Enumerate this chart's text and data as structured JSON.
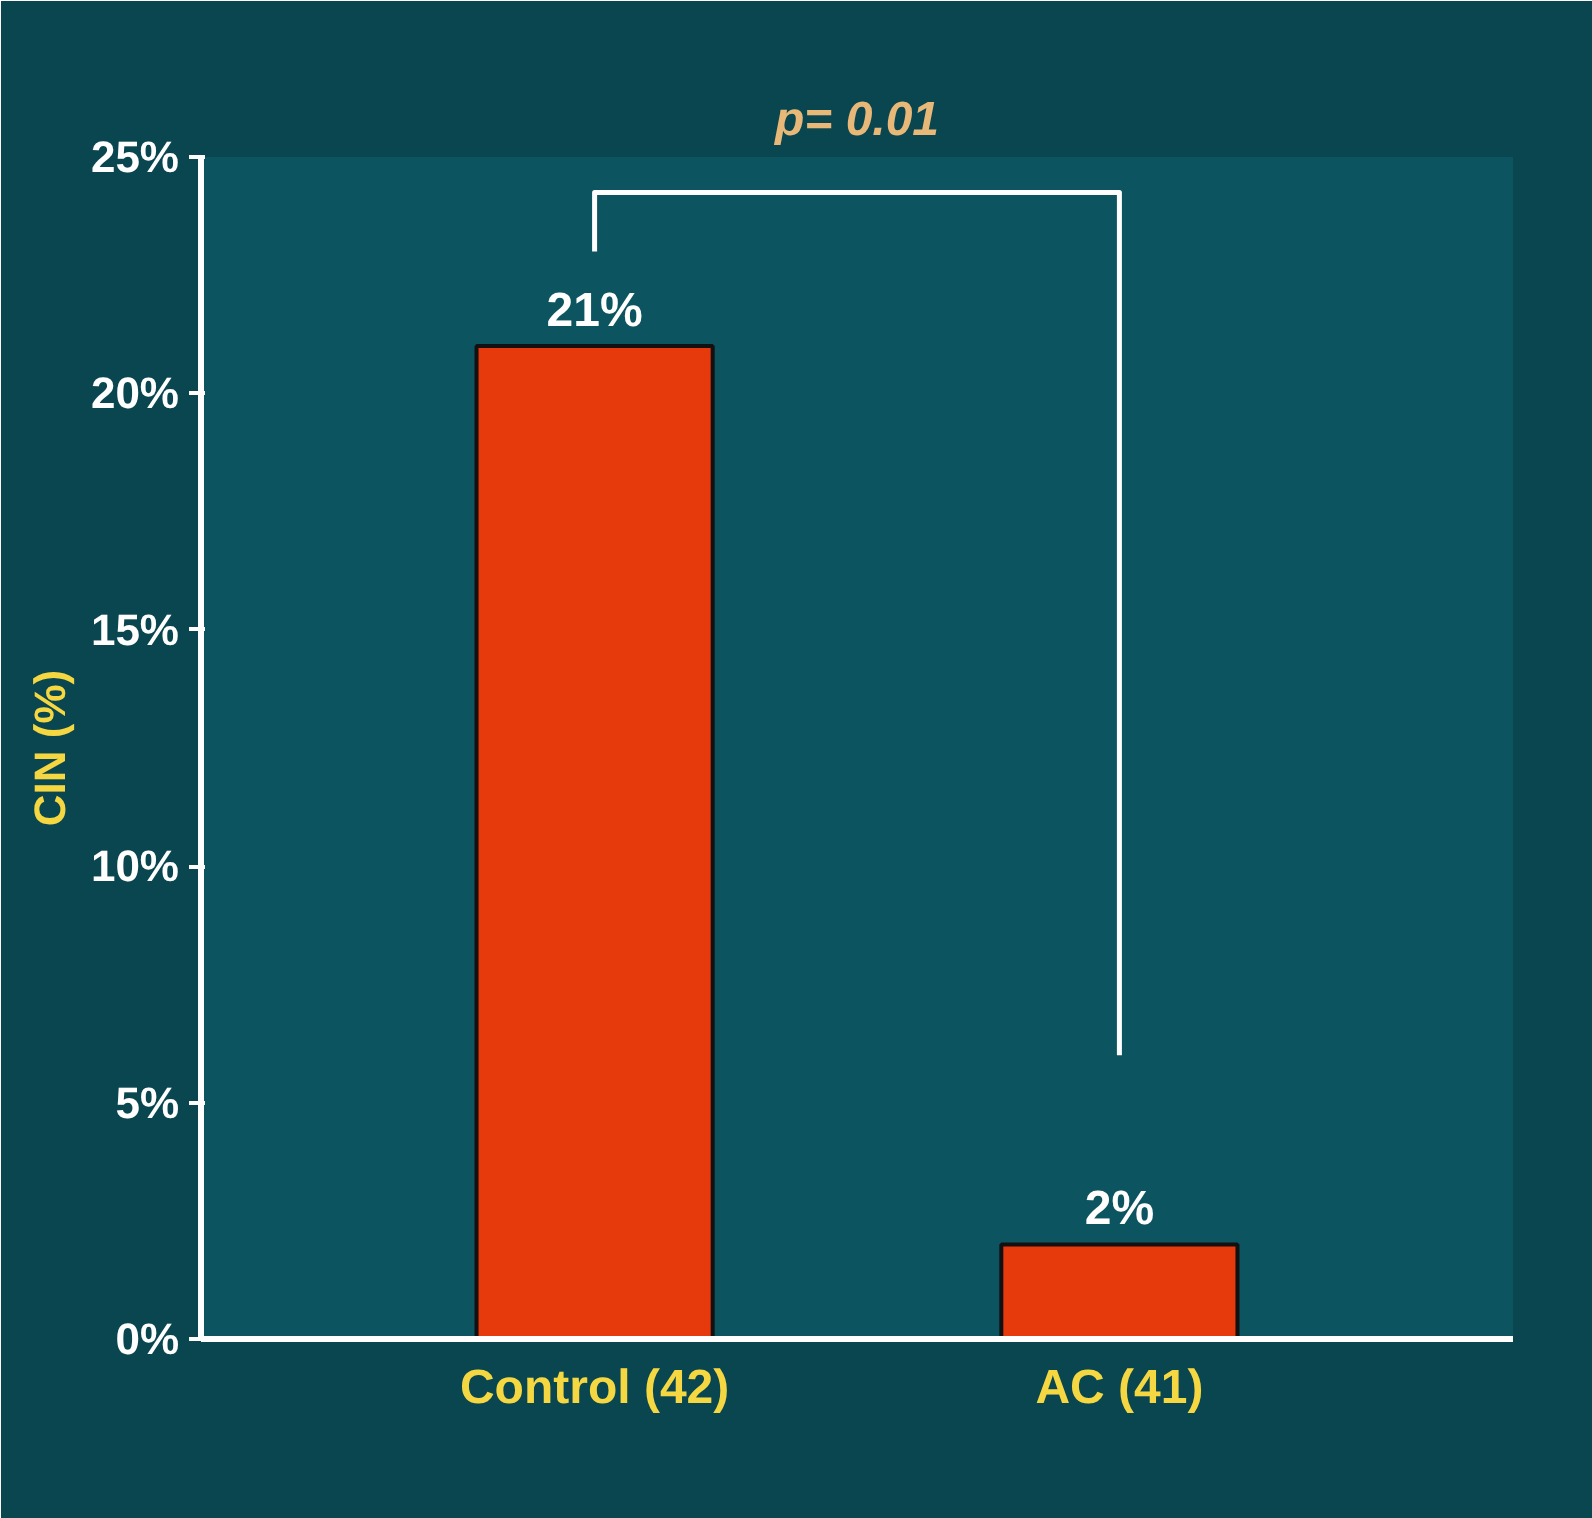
{
  "chart_data": {
    "type": "bar",
    "ylabel": "CIN (%)",
    "categories": [
      "Control (42)",
      "AC (41)"
    ],
    "values": [
      21,
      2
    ],
    "color": "#e63a0c",
    "value_labels": [
      "21%",
      "2%"
    ],
    "ylim": [
      0,
      25
    ],
    "yticks": [
      {
        "value": 0,
        "label": "0%"
      },
      {
        "value": 5,
        "label": "5%"
      },
      {
        "value": 10,
        "label": "10%"
      },
      {
        "value": 15,
        "label": "15%"
      },
      {
        "value": 20,
        "label": "20%"
      },
      {
        "value": 25,
        "label": "25%"
      }
    ],
    "annotations": [
      "p= 0.01"
    ],
    "grid": false
  }
}
